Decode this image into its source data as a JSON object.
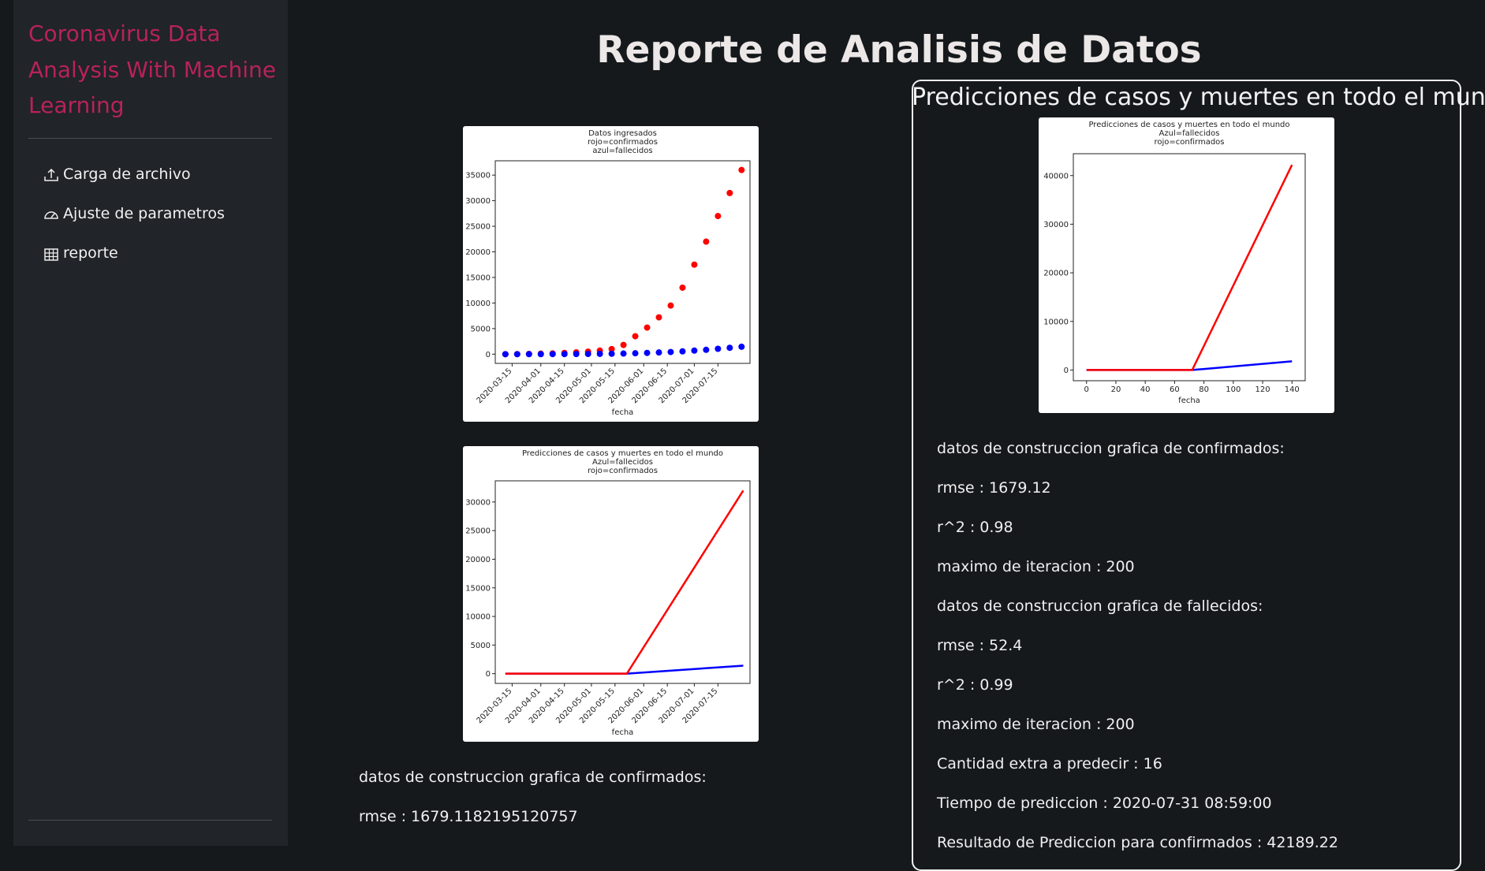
{
  "sidebar": {
    "brand": [
      "Coronavirus Data",
      "Analysis With Machine",
      "Learning"
    ],
    "nav": [
      "Carga de archivo",
      "Ajuste de parametros",
      "reporte"
    ]
  },
  "main": {
    "title": "Reporte de Analisis de Datos",
    "left_text": [
      "datos de construccion grafica de confirmados:",
      "rmse : 1679.1182195120757"
    ]
  },
  "panel": {
    "title": "Predicciones de casos y muertes en todo el mundo",
    "lines": [
      "datos de construccion grafica de confirmados:",
      "rmse : 1679.12",
      "r^2 : 0.98",
      "maximo de iteracion : 200",
      "datos de construccion grafica de fallecidos:",
      "rmse : 52.4",
      "r^2 : 0.99",
      "maximo de iteracion : 200",
      "Cantidad extra a predecir : 16",
      "Tiempo de prediccion : 2020-07-31 08:59:00",
      "Resultado de Prediccion para confirmados : 42189.22"
    ]
  },
  "chart_data": [
    {
      "type": "scatter",
      "title_lines": [
        "Datos ingresados",
        "rojo=confirmados",
        "azul=fallecidos"
      ],
      "xlabel": "fecha",
      "x": [
        "2020-03-11",
        "2020-03-18",
        "2020-03-25",
        "2020-04-01",
        "2020-04-08",
        "2020-04-15",
        "2020-04-22",
        "2020-04-29",
        "2020-05-06",
        "2020-05-13",
        "2020-05-20",
        "2020-05-27",
        "2020-06-03",
        "2020-06-10",
        "2020-06-17",
        "2020-06-24",
        "2020-07-01",
        "2020-07-08",
        "2020-07-15",
        "2020-07-22",
        "2020-07-29"
      ],
      "series": [
        {
          "name": "confirmados",
          "color": "#ff0000",
          "values": [
            0,
            20,
            50,
            100,
            150,
            250,
            350,
            500,
            700,
            1000,
            1800,
            3500,
            5200,
            7200,
            9500,
            13000,
            17500,
            22000,
            27000,
            31500,
            36000
          ]
        },
        {
          "name": "fallecidos",
          "color": "#0000ff",
          "values": [
            0,
            0,
            5,
            10,
            15,
            20,
            30,
            40,
            60,
            80,
            120,
            180,
            250,
            330,
            420,
            550,
            700,
            850,
            1050,
            1250,
            1450
          ]
        }
      ],
      "xlim": [
        "2020-03-05",
        "2020-08-03"
      ],
      "xticks": [
        "2020-03-15",
        "2020-04-01",
        "2020-04-15",
        "2020-05-01",
        "2020-05-15",
        "2020-06-01",
        "2020-06-15",
        "2020-07-01",
        "2020-07-15"
      ],
      "ylim": [
        -1800,
        37800
      ],
      "yticks": [
        0,
        5000,
        10000,
        15000,
        20000,
        25000,
        30000,
        35000
      ]
    },
    {
      "type": "line",
      "title_lines": [
        "Predicciones de casos y muertes en todo el mundo",
        "Azul=fallecidos",
        "rojo=confirmados"
      ],
      "xlabel": "fecha",
      "x": [
        "2020-03-11",
        "2020-05-22",
        "2020-07-30"
      ],
      "series": [
        {
          "name": "fallecidos",
          "color": "#0000ff",
          "values": [
            0,
            0,
            1400
          ]
        },
        {
          "name": "confirmados",
          "color": "#ff0000",
          "values": [
            0,
            0,
            32000
          ]
        }
      ],
      "xlim": [
        "2020-03-05",
        "2020-08-03"
      ],
      "xticks": [
        "2020-03-15",
        "2020-04-01",
        "2020-04-15",
        "2020-05-01",
        "2020-05-15",
        "2020-06-01",
        "2020-06-15",
        "2020-07-01",
        "2020-07-15"
      ],
      "ylim": [
        -1700,
        33700
      ],
      "yticks": [
        0,
        5000,
        10000,
        15000,
        20000,
        25000,
        30000
      ]
    },
    {
      "type": "line",
      "title_lines": [
        "Predicciones de casos y muertes en todo el mundo",
        "Azul=fallecidos",
        "rojo=confirmados"
      ],
      "xlabel": "fecha",
      "x": [
        0,
        72,
        140
      ],
      "series": [
        {
          "name": "fallecidos",
          "color": "#0000ff",
          "values": [
            0,
            0,
            1800
          ]
        },
        {
          "name": "confirmados",
          "color": "#ff0000",
          "values": [
            0,
            0,
            42200
          ]
        }
      ],
      "xlim": [
        -9,
        149
      ],
      "xticks": [
        0,
        20,
        40,
        60,
        80,
        100,
        120,
        140
      ],
      "ylim": [
        -2200,
        44500
      ],
      "yticks": [
        0,
        10000,
        20000,
        30000,
        40000
      ]
    }
  ]
}
